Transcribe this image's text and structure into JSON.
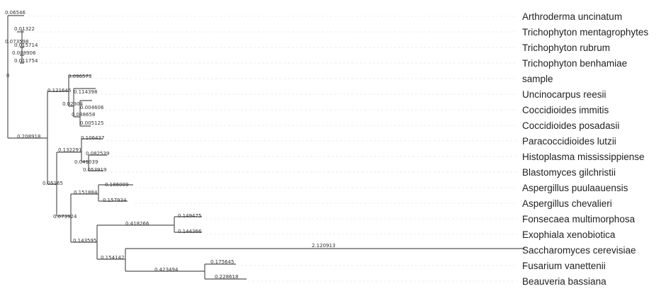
{
  "leaves": [
    "Arthroderma uncinatum",
    "Trichophyton mentagrophytes",
    "Trichophyton rubrum",
    "Trichophyton benhamiae",
    "sample",
    "Uncinocarpus reesii",
    "Coccidioides immitis",
    "Coccidioides posadasii",
    "Paracoccidioides lutzii",
    "Histoplasma mississippiense",
    "Blastomyces gilchristii",
    "Aspergillus puulaauensis",
    "Aspergillus chevalieri",
    "Fonsecaea multimorphosa",
    "Exophiala xenobiotica",
    "Saccharomyces cerevisiae",
    "Fusarium vanettenii",
    "Beauveria bassiana"
  ],
  "branch_lengths": {
    "b1": "0.06546",
    "b2": "0.01322",
    "b3": "0.073598",
    "b4": "0.015714",
    "b5": "0.008906",
    "b6": "0.011754",
    "b7": "0",
    "b8": "0.096573",
    "b9": "0.121646",
    "b10": "0.114398",
    "b11": "0.02304",
    "b12": "0.004606",
    "b13": "0.088658",
    "b14": "0.005125",
    "b15": "0.208918",
    "b16": "0.106437",
    "b17": "0.132291",
    "b18": "0.082539",
    "b19": "0.041039",
    "b20": "0.053919",
    "b21": "0.05165",
    "b22": "0.186009",
    "b23": "0.151884",
    "b24": "0.157934",
    "b25": "0.073924",
    "b26": "0.149475",
    "b27": "0.418266",
    "b28": "0.144366",
    "b29": "0.143595",
    "b30": "2.120913",
    "b31": "0.154142",
    "b32": "0.175645",
    "b33": "0.423494",
    "b34": "0.228618"
  }
}
